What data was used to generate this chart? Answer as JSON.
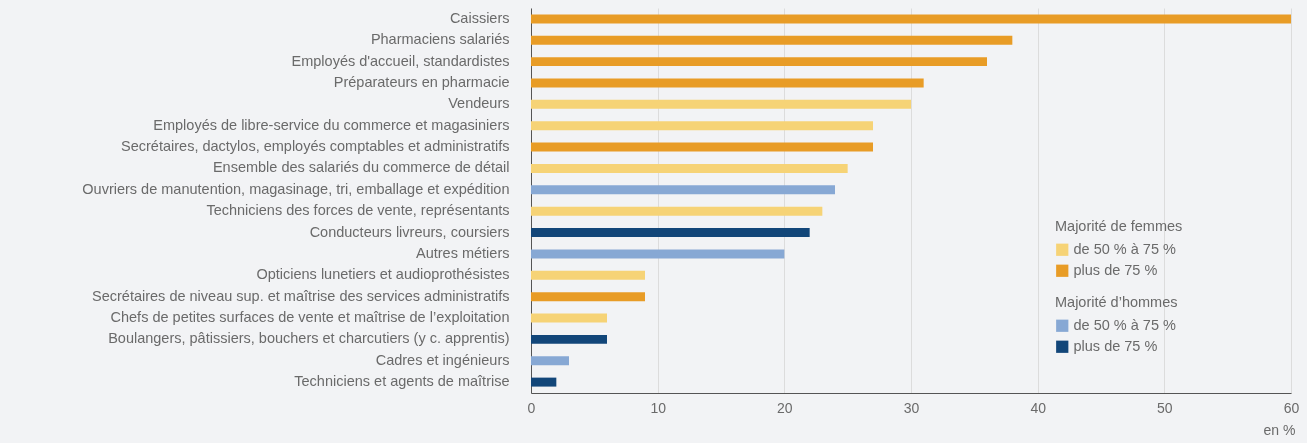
{
  "chart_data": {
    "type": "bar",
    "orientation": "horizontal",
    "categories": [
      "Caissiers",
      "Pharmaciens salariés",
      "Employés d'accueil, standardistes",
      "Préparateurs en pharmacie",
      "Vendeurs",
      "Employés de libre-service du commerce et magasiniers",
      "Secrétaires, dactylos, employés comptables et administratifs",
      "Ensemble des salariés du commerce de détail",
      "Ouvriers de manutention, magasinage, tri, emballage et expédition",
      "Techniciens des forces de vente, représentants",
      "Conducteurs livreurs, coursiers",
      "Autres métiers",
      "Opticiens lunetiers et audioprothésistes",
      "Secrétaires de niveau sup. et maîtrise des services administratifs",
      "Chefs de petites surfaces de vente et maîtrise de l’exploitation",
      "Boulangers, pâtissiers, bouchers et charcutiers (y c. apprentis)",
      "Cadres et ingénieurs",
      "Techniciens et agents de maîtrise"
    ],
    "series": [
      {
        "name": "de 50 %  à 75 %",
        "color": "#f6d376",
        "values": [
          null,
          null,
          null,
          null,
          30,
          27,
          null,
          25,
          null,
          23,
          null,
          null,
          9,
          null,
          6,
          null,
          null,
          null
        ]
      },
      {
        "name": "plus de 75 %",
        "color": "#e89c26",
        "values": [
          60,
          38,
          36,
          31,
          null,
          null,
          27,
          null,
          null,
          null,
          null,
          null,
          null,
          9,
          null,
          null,
          null,
          null
        ]
      },
      {
        "name": "de 50 % à 75 %",
        "color": "#87a8d4",
        "values": [
          null,
          null,
          null,
          null,
          null,
          null,
          null,
          null,
          24,
          null,
          null,
          20,
          null,
          null,
          null,
          null,
          3,
          null
        ]
      },
      {
        "name": "plus de 75 %",
        "color": "#124679",
        "values": [
          null,
          null,
          null,
          null,
          null,
          null,
          null,
          null,
          null,
          null,
          22,
          null,
          null,
          null,
          null,
          6,
          null,
          2
        ]
      }
    ],
    "xlabel": "en %",
    "xlim": [
      0,
      60
    ],
    "xticks": [
      0,
      10,
      20,
      30,
      40,
      50,
      60
    ],
    "grid": "x",
    "legend": "right",
    "annotations": [
      "Majorité de femmes",
      "Majorité d’hommes"
    ]
  }
}
